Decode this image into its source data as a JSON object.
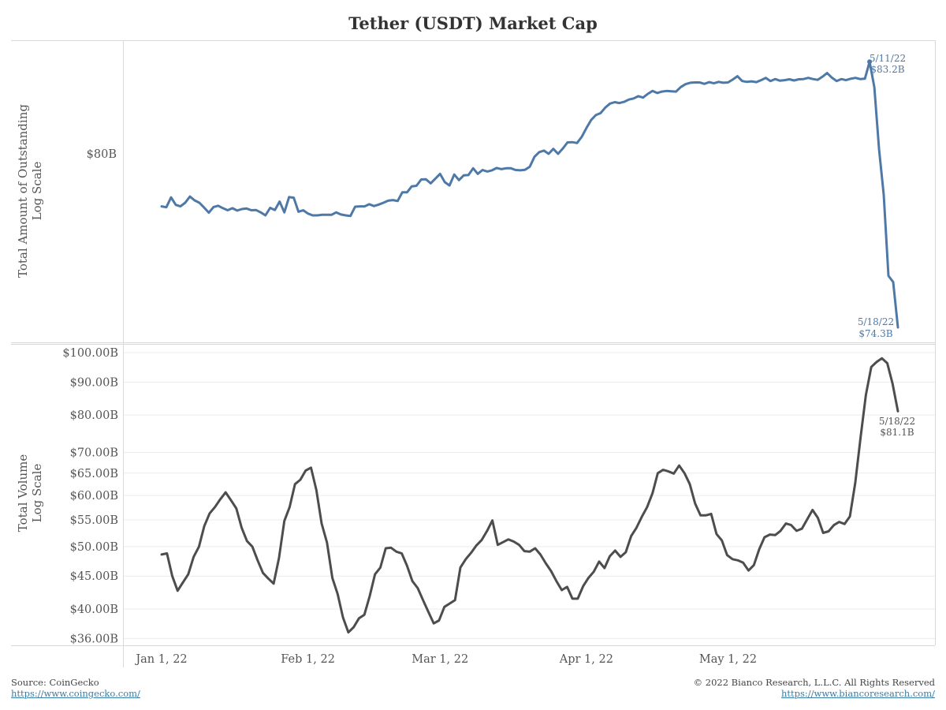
{
  "chart_data": [
    {
      "type": "line",
      "title": "Tether (USDT) Market Cap",
      "ylabel": "Total Amount of Outstanding",
      "ylabel_line2": "Log Scale",
      "scale": "log",
      "color": "#4e79a7",
      "y_ticks": [
        {
          "value": 80.0,
          "label": "$80B"
        }
      ],
      "x_ticks": [
        "Jan 1, 22",
        "Feb 1, 22",
        "Mar 1, 22",
        "Apr 1, 22",
        "May 1, 22"
      ],
      "annotations": [
        {
          "date_label": "5/11/22",
          "value_label": "$83.2B"
        },
        {
          "date_label": "5/18/22",
          "value_label": "$74.3B"
        }
      ],
      "series": [
        {
          "start_date": "2022-01-01",
          "values": [
            78.23,
            78.2,
            78.53,
            78.28,
            78.23,
            78.35,
            78.56,
            78.43,
            78.35,
            78.19,
            78.02,
            78.21,
            78.25,
            78.17,
            78.1,
            78.17,
            78.09,
            78.14,
            78.16,
            78.1,
            78.11,
            78.03,
            77.93,
            78.18,
            78.11,
            78.39,
            78.03,
            78.54,
            78.52,
            78.05,
            78.1,
            77.99,
            77.93,
            77.93,
            77.95,
            77.95,
            77.95,
            78.03,
            77.96,
            77.93,
            77.91,
            78.22,
            78.23,
            78.23,
            78.3,
            78.24,
            78.29,
            78.35,
            78.42,
            78.44,
            78.41,
            78.7,
            78.7,
            78.9,
            78.92,
            79.13,
            79.14,
            79.0,
            79.16,
            79.32,
            79.04,
            78.93,
            79.3,
            79.11,
            79.27,
            79.28,
            79.51,
            79.32,
            79.45,
            79.4,
            79.44,
            79.52,
            79.48,
            79.51,
            79.51,
            79.45,
            79.44,
            79.46,
            79.56,
            79.9,
            80.06,
            80.11,
            80.0,
            80.17,
            80.0,
            80.18,
            80.39,
            80.4,
            80.37,
            80.58,
            80.88,
            81.16,
            81.33,
            81.4,
            81.59,
            81.73,
            81.78,
            81.75,
            81.79,
            81.87,
            81.91,
            81.99,
            81.94,
            82.07,
            82.17,
            82.1,
            82.15,
            82.17,
            82.16,
            82.15,
            82.31,
            82.41,
            82.46,
            82.47,
            82.47,
            82.42,
            82.48,
            82.44,
            82.49,
            82.46,
            82.47,
            82.57,
            82.69,
            82.52,
            82.49,
            82.51,
            82.48,
            82.55,
            82.63,
            82.52,
            82.59,
            82.53,
            82.55,
            82.58,
            82.54,
            82.58,
            82.59,
            82.63,
            82.59,
            82.56,
            82.67,
            82.8,
            82.64,
            82.52,
            82.59,
            82.55,
            82.6,
            82.63,
            82.59,
            82.6,
            83.2,
            82.3,
            80.15,
            78.62,
            75.95,
            75.75,
            74.3
          ]
        }
      ]
    },
    {
      "type": "line",
      "ylabel": "Total Volume",
      "ylabel_line2": "Log Scale",
      "scale": "log",
      "color": "#4d4d4d",
      "y_ticks": [
        {
          "value": 100,
          "label": "$100.00B"
        },
        {
          "value": 90,
          "label": "$90.00B"
        },
        {
          "value": 80,
          "label": "$80.00B"
        },
        {
          "value": 70,
          "label": "$70.00B"
        },
        {
          "value": 65,
          "label": "$65.00B"
        },
        {
          "value": 60,
          "label": "$60.00B"
        },
        {
          "value": 55,
          "label": "$55.00B"
        },
        {
          "value": 50,
          "label": "$50.00B"
        },
        {
          "value": 45,
          "label": "$45.00B"
        },
        {
          "value": 40,
          "label": "$40.00B"
        },
        {
          "value": 36,
          "label": "$36.00B"
        }
      ],
      "annotations": [
        {
          "date_label": "5/18/22",
          "value_label": "$81.1B"
        }
      ],
      "series": [
        {
          "start_date": "2022-01-01",
          "values": [
            48.6,
            48.8,
            45.0,
            42.7,
            44.0,
            45.3,
            48.2,
            50.0,
            53.8,
            56.3,
            57.6,
            59.2,
            60.7,
            59.0,
            57.3,
            53.5,
            51.0,
            50.0,
            47.6,
            45.5,
            44.6,
            43.8,
            48.0,
            54.8,
            57.6,
            62.5,
            63.5,
            65.6,
            66.3,
            61.2,
            54.3,
            50.7,
            44.7,
            42.2,
            38.8,
            36.8,
            37.5,
            38.7,
            39.2,
            41.9,
            45.3,
            46.4,
            49.7,
            49.8,
            49.1,
            48.8,
            46.7,
            44.2,
            43.1,
            41.3,
            39.6,
            38.0,
            38.4,
            40.3,
            40.8,
            41.3,
            46.4,
            47.8,
            48.9,
            50.2,
            51.2,
            52.9,
            54.9,
            50.3,
            50.8,
            51.3,
            50.9,
            50.3,
            49.2,
            49.1,
            49.7,
            48.6,
            47.1,
            45.8,
            44.2,
            42.8,
            43.3,
            41.5,
            41.5,
            43.4,
            44.7,
            45.7,
            47.4,
            46.3,
            48.3,
            49.3,
            48.2,
            49.0,
            51.9,
            53.5,
            55.6,
            57.6,
            60.5,
            65.0,
            65.8,
            65.4,
            64.9,
            66.8,
            65.0,
            62.5,
            58.3,
            55.9,
            55.9,
            56.2,
            52.3,
            51.1,
            48.5,
            47.8,
            47.6,
            47.2,
            45.9,
            46.8,
            49.5,
            51.7,
            52.2,
            52.1,
            52.9,
            54.3,
            54.0,
            52.9,
            53.3,
            55.1,
            57.0,
            55.4,
            52.5,
            52.8,
            54.0,
            54.6,
            54.2,
            55.7,
            62.8,
            73.8,
            86.0,
            95.0,
            96.7,
            98.0,
            96.3,
            89.5,
            81.1
          ]
        }
      ]
    }
  ],
  "footer": {
    "source_label": "Source: CoinGecko",
    "source_url": "https://www.coingecko.com/",
    "copyright": "© 2022 Bianco Research, L.L.C. All Rights Reserved",
    "site_url": "https://www.biancoresearch.com/"
  }
}
